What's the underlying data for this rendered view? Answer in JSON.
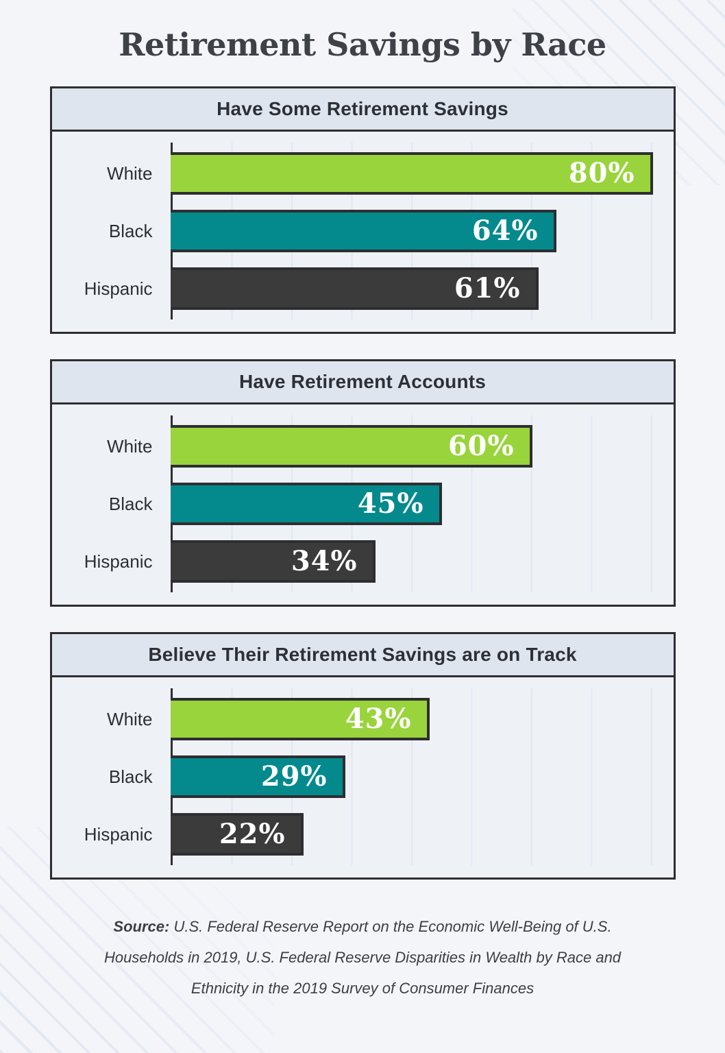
{
  "page": {
    "title": "Retirement Savings by Race",
    "background": "#f3f5f9",
    "source": {
      "label": "Source:",
      "text": "U.S. Federal Reserve Report on the Economic Well-Being of U.S. Households in 2019, U.S. Federal Reserve Disparities in Wealth by Race and Ethnicity in the 2019 Survey of Consumer Finances"
    }
  },
  "colors": {
    "accent_green": "#99d43c",
    "accent_teal": "#048a8d",
    "accent_dark": "#3b3b3b",
    "box_border": "#2e2e31",
    "header_fill": "#dfe5ee",
    "body_fill": "#eef1f6",
    "gridline": "#e2e8f1",
    "value_text": "#ffffff",
    "title_text": "#3e4147"
  },
  "chart_data": [
    {
      "type": "bar",
      "orientation": "horizontal",
      "title": "Have Some Retirement Savings",
      "categories": [
        "White",
        "Black",
        "Hispanic"
      ],
      "values": [
        80,
        64,
        61
      ],
      "value_labels": [
        "80%",
        "64%",
        "61%"
      ],
      "bar_colors": [
        "#99d43c",
        "#048a8d",
        "#3b3b3b"
      ],
      "xlim": [
        0,
        84
      ],
      "grid": true,
      "gridline_step": 10,
      "value_label_position": "inside-right"
    },
    {
      "type": "bar",
      "orientation": "horizontal",
      "title": "Have Retirement Accounts",
      "categories": [
        "White",
        "Black",
        "Hispanic"
      ],
      "values": [
        60,
        45,
        34
      ],
      "value_labels": [
        "60%",
        "45%",
        "34%"
      ],
      "bar_colors": [
        "#99d43c",
        "#048a8d",
        "#3b3b3b"
      ],
      "xlim": [
        0,
        84
      ],
      "grid": true,
      "gridline_step": 10,
      "value_label_position": "inside-right"
    },
    {
      "type": "bar",
      "orientation": "horizontal",
      "title": "Believe Their Retirement Savings are on Track",
      "categories": [
        "White",
        "Black",
        "Hispanic"
      ],
      "values": [
        43,
        29,
        22
      ],
      "value_labels": [
        "43%",
        "29%",
        "22%"
      ],
      "bar_colors": [
        "#99d43c",
        "#048a8d",
        "#3b3b3b"
      ],
      "xlim": [
        0,
        84
      ],
      "grid": true,
      "gridline_step": 10,
      "value_label_position": "inside-right"
    }
  ]
}
